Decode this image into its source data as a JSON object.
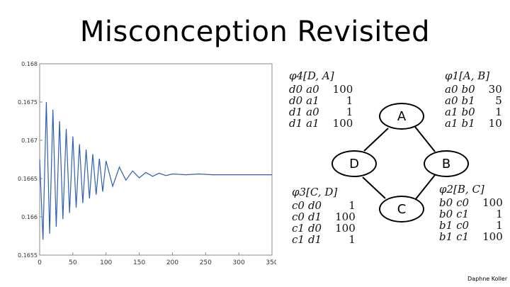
{
  "slide": {
    "title": "Misconception Revisited",
    "credit": "Daphne Koller"
  },
  "graph": {
    "nodes": [
      {
        "id": "A",
        "label": "A"
      },
      {
        "id": "B",
        "label": "B"
      },
      {
        "id": "C",
        "label": "C"
      },
      {
        "id": "D",
        "label": "D"
      }
    ],
    "edges": [
      [
        "D",
        "A"
      ],
      [
        "A",
        "B"
      ],
      [
        "B",
        "C"
      ],
      [
        "C",
        "D"
      ]
    ]
  },
  "factors": [
    {
      "id": "phi4",
      "title": "φ4[D, A]",
      "rows": [
        [
          "d0",
          "a0",
          "100"
        ],
        [
          "d0",
          "a1",
          "1"
        ],
        [
          "d1",
          "a0",
          "1"
        ],
        [
          "d1",
          "a1",
          "100"
        ]
      ]
    },
    {
      "id": "phi1",
      "title": "φ1[A, B]",
      "rows": [
        [
          "a0",
          "b0",
          "30"
        ],
        [
          "a0",
          "b1",
          "5"
        ],
        [
          "a1",
          "b0",
          "1"
        ],
        [
          "a1",
          "b1",
          "10"
        ]
      ]
    },
    {
      "id": "phi3",
      "title": "φ3[C, D]",
      "rows": [
        [
          "c0",
          "d0",
          "1"
        ],
        [
          "c0",
          "d1",
          "100"
        ],
        [
          "c1",
          "d0",
          "100"
        ],
        [
          "c1",
          "d1",
          "1"
        ]
      ]
    },
    {
      "id": "phi2",
      "title": "φ2[B, C]",
      "rows": [
        [
          "b0",
          "c0",
          "100"
        ],
        [
          "b0",
          "c1",
          "1"
        ],
        [
          "b1",
          "c0",
          "1"
        ],
        [
          "b1",
          "c1",
          "100"
        ]
      ]
    }
  ],
  "chart_data": {
    "type": "line",
    "title": "",
    "xlabel": "",
    "ylabel": "",
    "xlim": [
      0,
      350
    ],
    "ylim": [
      0.1655,
      0.168
    ],
    "xticks": [
      "0",
      "50",
      "100",
      "150",
      "200",
      "250",
      "300",
      "350"
    ],
    "yticks": [
      "0.1655",
      "0.166",
      "0.1665",
      "0.167",
      "0.1675",
      "0.168"
    ],
    "series": [
      {
        "color": "#2f5fb3",
        "x": [
          0,
          5,
          10,
          15,
          20,
          25,
          30,
          35,
          40,
          45,
          50,
          55,
          60,
          65,
          70,
          75,
          80,
          85,
          90,
          95,
          100,
          110,
          120,
          130,
          140,
          150,
          160,
          170,
          180,
          190,
          200,
          220,
          240,
          260,
          280,
          300,
          330,
          350
        ],
        "y": [
          0.16675,
          0.1657,
          0.1675,
          0.16578,
          0.1674,
          0.16587,
          0.16725,
          0.16597,
          0.16715,
          0.16605,
          0.16705,
          0.16612,
          0.16695,
          0.16618,
          0.16688,
          0.16624,
          0.16682,
          0.16629,
          0.16676,
          0.16633,
          0.16673,
          0.1664,
          0.16665,
          0.16648,
          0.1666,
          0.16651,
          0.16658,
          0.16653,
          0.16657,
          0.16654,
          0.16656,
          0.16655,
          0.16656,
          0.16655,
          0.16655,
          0.16655,
          0.16655,
          0.16655
        ]
      }
    ],
    "grid": false
  }
}
